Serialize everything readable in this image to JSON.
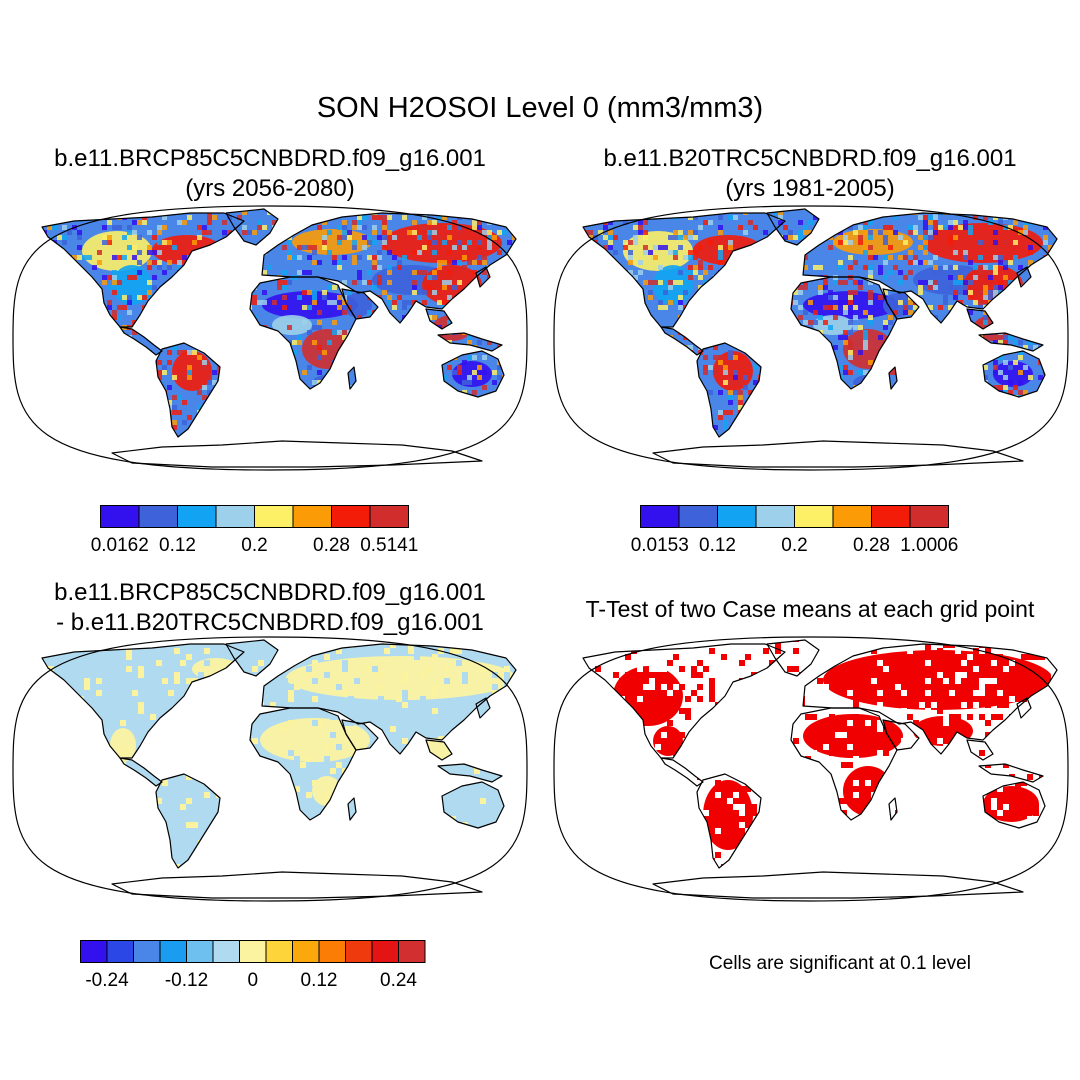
{
  "title": "SON H2OSOI Level 0 (mm3/mm3)",
  "panels": [
    {
      "id": "p1",
      "title_line1": "b.e11.BRCP85C5CNBDRD.f09_g16.001",
      "title_line2": "(yrs 2056-2080)",
      "colorbar": {
        "colors": [
          "#3311ee",
          "#3d62d9",
          "#12a4f2",
          "#9dd0ea",
          "#fdf067",
          "#fb9b05",
          "#f31c09",
          "#d12d2d"
        ],
        "labels": [
          "0.0162",
          "0.12",
          "0.2",
          "0.28",
          "0.5141"
        ]
      }
    },
    {
      "id": "p2",
      "title_line1": "b.e11.B20TRC5CNBDRD.f09_g16.001",
      "title_line2": "(yrs 1981-2005)",
      "colorbar": {
        "colors": [
          "#3311ee",
          "#3d62d9",
          "#12a4f2",
          "#9dd0ea",
          "#fdf067",
          "#fb9b05",
          "#f31c09",
          "#d12d2d"
        ],
        "labels": [
          "0.0153",
          "0.12",
          "0.2",
          "0.28",
          "1.0006"
        ]
      }
    },
    {
      "id": "p3",
      "title_line1": "b.e11.BRCP85C5CNBDRD.f09_g16.001",
      "title_line2": "- b.e11.B20TRC5CNBDRD.f09_g16.001",
      "colorbar": {
        "colors": [
          "#3311ee",
          "#2b47e6",
          "#4a86e8",
          "#1a9cf0",
          "#6ec0ef",
          "#b0daf0",
          "#fbf3a0",
          "#fdd43a",
          "#fba80c",
          "#fb7d06",
          "#ef3a0e",
          "#e41414",
          "#d22f30"
        ],
        "labels": [
          "-0.24",
          "-0.12",
          "0",
          "0.12",
          "0.24"
        ]
      }
    },
    {
      "id": "p4",
      "title_line1": "T-Test of two Case means at each grid point",
      "note": "Cells are significant at 0.1 level"
    }
  ]
}
